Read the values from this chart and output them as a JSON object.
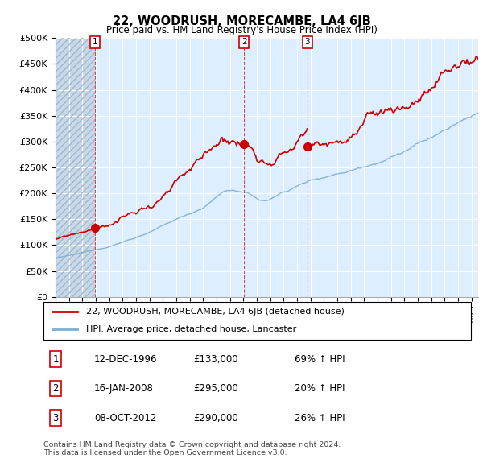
{
  "title": "22, WOODRUSH, MORECAMBE, LA4 6JB",
  "subtitle": "Price paid vs. HM Land Registry's House Price Index (HPI)",
  "xlim_start": 1994.0,
  "xlim_end": 2025.5,
  "ylim": [
    0,
    500000
  ],
  "yticks": [
    0,
    50000,
    100000,
    150000,
    200000,
    250000,
    300000,
    350000,
    400000,
    450000,
    500000
  ],
  "ytick_labels": [
    "£0",
    "£50K",
    "£100K",
    "£150K",
    "£200K",
    "£250K",
    "£300K",
    "£350K",
    "£400K",
    "£450K",
    "£500K"
  ],
  "transaction1_date": 1996.95,
  "transaction1_price": 133000,
  "transaction2_date": 2008.05,
  "transaction2_price": 295000,
  "transaction3_date": 2012.77,
  "transaction3_price": 290000,
  "legend_line1": "22, WOODRUSH, MORECAMBE, LA4 6JB (detached house)",
  "legend_line2": "HPI: Average price, detached house, Lancaster",
  "table_rows": [
    [
      "1",
      "12-DEC-1996",
      "£133,000",
      "69% ↑ HPI"
    ],
    [
      "2",
      "16-JAN-2008",
      "£295,000",
      "20% ↑ HPI"
    ],
    [
      "3",
      "08-OCT-2012",
      "£290,000",
      "26% ↑ HPI"
    ]
  ],
  "footer": "Contains HM Land Registry data © Crown copyright and database right 2024.\nThis data is licensed under the Open Government Licence v3.0.",
  "red_color": "#cc0000",
  "blue_color": "#7bafd4",
  "plot_bg_color": "#ddeeff",
  "hatch_color": "#c0d0e0"
}
